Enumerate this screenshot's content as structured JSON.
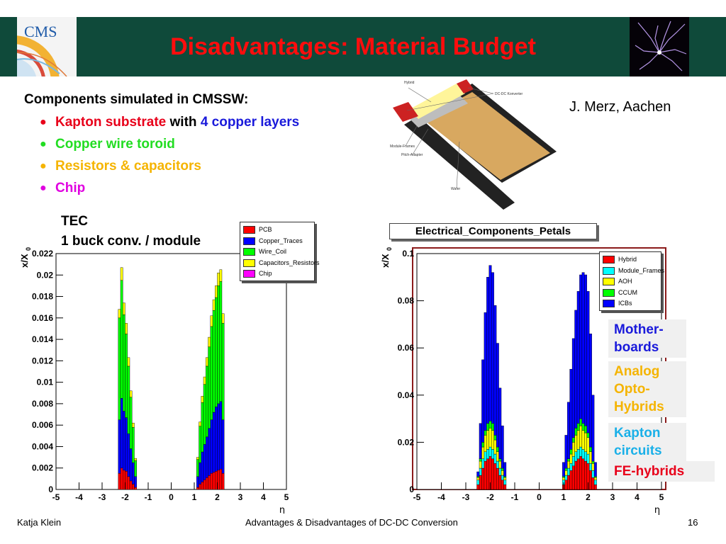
{
  "slide": {
    "title": "Disadvantages: Material Budget",
    "logo_text": "CMS",
    "components_heading": "Components simulated in CMSSW:",
    "bullets": [
      {
        "parts": [
          {
            "text": "Kapton substrate",
            "color": "#e8001a"
          },
          {
            "text": " with ",
            "color": "#000000"
          },
          {
            "text": "4 copper layers",
            "color": "#1a1adb"
          }
        ]
      },
      {
        "parts": [
          {
            "text": "Copper wire toroid",
            "color": "#22dd22"
          }
        ]
      },
      {
        "parts": [
          {
            "text": "Resistors & capacitors",
            "color": "#f5b400"
          }
        ]
      },
      {
        "parts": [
          {
            "text": "Chip",
            "color": "#e000e0"
          }
        ]
      }
    ],
    "credit": "J. Merz, Aachen",
    "module_diagram": {
      "labels": [
        "Hybrid",
        "DC-DC Konverter",
        "Module-Frames",
        "Pitch-Adapter",
        "Wafer"
      ],
      "colors": {
        "hybrid": "#fff59a",
        "frames": "#222222",
        "wafer": "#d8a860",
        "dcdc": "#cc2222",
        "pitch": "#bdbdbd"
      }
    },
    "left_chart_heading": [
      "TEC",
      "1 buck conv. / module"
    ],
    "right_chart_title": "Electrical_Components_Petals",
    "annotations": [
      {
        "text": "Mother-\nboards",
        "color": "#1a1adb"
      },
      {
        "text": "Analog\nOpto-\nHybrids",
        "color": "#f5b400"
      },
      {
        "text": "Kapton\ncircuits",
        "color": "#1ab0e8"
      },
      {
        "text": "FE-hybrids",
        "color": "#e8001a"
      }
    ],
    "footer": {
      "author": "Katja Klein",
      "center": "Advantages & Disadvantages of DC-DC Conversion",
      "page": "16"
    }
  },
  "chart_data": [
    {
      "type": "area",
      "stacked": true,
      "ylabel": "x/X",
      "ylabel_sub": "0",
      "xlabel": "η",
      "xlim": [
        -5,
        5
      ],
      "ylim": [
        0,
        0.022
      ],
      "xticks": [
        "-5",
        "-4",
        "-3",
        "-2",
        "-1",
        "0",
        "1",
        "2",
        "3",
        "4",
        "5"
      ],
      "yticks": [
        "0",
        "0.002",
        "0.004",
        "0.006",
        "0.008",
        "0.01",
        "0.012",
        "0.014",
        "0.016",
        "0.018",
        "0.02",
        "0.022"
      ],
      "legend_position": "top-right",
      "x": [
        -2.25,
        -2.15,
        -2.05,
        -1.95,
        -1.85,
        -1.75,
        -1.65,
        -1.55,
        1.15,
        1.25,
        1.35,
        1.45,
        1.55,
        1.65,
        1.75,
        1.85,
        1.95,
        2.05,
        2.15,
        2.25
      ],
      "series": [
        {
          "name": "PCB",
          "color": "#ff0000",
          "values": [
            0.0015,
            0.002,
            0.0018,
            0.0017,
            0.0012,
            0.0008,
            0.0005,
            0.0002,
            0.0002,
            0.0005,
            0.0007,
            0.0009,
            0.0011,
            0.0013,
            0.0015,
            0.0016,
            0.0017,
            0.0018,
            0.0019,
            0.0015
          ]
        },
        {
          "name": "Copper_Traces",
          "color": "#0000ff",
          "values": [
            0.005,
            0.0065,
            0.0055,
            0.005,
            0.004,
            0.003,
            0.002,
            0.001,
            0.001,
            0.002,
            0.0028,
            0.0033,
            0.0038,
            0.0044,
            0.005,
            0.0056,
            0.006,
            0.0062,
            0.0063,
            0.005
          ]
        },
        {
          "name": "Wire_Coil",
          "color": "#00ff00",
          "values": [
            0.0095,
            0.011,
            0.009,
            0.0078,
            0.0063,
            0.0048,
            0.0033,
            0.0015,
            0.0016,
            0.0034,
            0.0046,
            0.0056,
            0.0066,
            0.0076,
            0.0087,
            0.0095,
            0.0102,
            0.011,
            0.0112,
            0.009
          ]
        },
        {
          "name": "Capacitors_Resistors",
          "color": "#ffff00",
          "values": [
            0.0008,
            0.0012,
            0.0011,
            0.001,
            0.0008,
            0.0006,
            0.0004,
            0.0002,
            0.0002,
            0.0004,
            0.0006,
            0.0007,
            0.0008,
            0.0009,
            0.001,
            0.001,
            0.0011,
            0.0012,
            0.0011,
            0.0009
          ]
        },
        {
          "name": "Chip",
          "color": "#ff00ff",
          "values": [
            0,
            0,
            0,
            0,
            0,
            0,
            0,
            0,
            0,
            0,
            0,
            0,
            0,
            0,
            0,
            0,
            0,
            0,
            0,
            0
          ]
        }
      ]
    },
    {
      "type": "area",
      "stacked": true,
      "title": "Electrical_Components_Petals",
      "ylabel": "x/X",
      "ylabel_sub": "0",
      "xlabel": "η",
      "xlim": [
        -5,
        5
      ],
      "ylim": [
        0,
        0.1
      ],
      "xticks": [
        "-5",
        "-4",
        "-3",
        "-2",
        "-1",
        "0",
        "1",
        "2",
        "3",
        "4",
        "5"
      ],
      "yticks": [
        "0",
        "0.02",
        "0.04",
        "0.06",
        "0.08",
        "0.1"
      ],
      "legend_position": "top-right",
      "x": [
        -2.5,
        -2.4,
        -2.3,
        -2.2,
        -2.1,
        -2.0,
        -1.9,
        -1.8,
        -1.7,
        -1.6,
        -1.5,
        -1.4,
        1.0,
        1.1,
        1.2,
        1.3,
        1.4,
        1.5,
        1.6,
        1.7,
        1.8,
        1.9,
        2.0,
        2.1,
        2.2,
        2.3
      ],
      "series": [
        {
          "name": "Hybrid",
          "color": "#ff0000",
          "values": [
            0.002,
            0.006,
            0.009,
            0.012,
            0.013,
            0.014,
            0.013,
            0.011,
            0.009,
            0.006,
            0.004,
            0.002,
            0.002,
            0.004,
            0.006,
            0.008,
            0.01,
            0.012,
            0.013,
            0.014,
            0.013,
            0.012,
            0.011,
            0.008,
            0.005,
            0.002
          ]
        },
        {
          "name": "Module_Frames",
          "color": "#00ffff",
          "values": [
            0.002,
            0.003,
            0.004,
            0.004,
            0.004,
            0.004,
            0.004,
            0.004,
            0.003,
            0.003,
            0.002,
            0.002,
            0.002,
            0.002,
            0.003,
            0.003,
            0.004,
            0.004,
            0.004,
            0.004,
            0.004,
            0.004,
            0.004,
            0.003,
            0.003,
            0.002
          ]
        },
        {
          "name": "AOH",
          "color": "#ffff00",
          "values": [
            0.001,
            0.003,
            0.005,
            0.007,
            0.008,
            0.008,
            0.008,
            0.006,
            0.004,
            0.003,
            0.002,
            0.001,
            0.001,
            0.002,
            0.003,
            0.004,
            0.006,
            0.007,
            0.008,
            0.009,
            0.008,
            0.008,
            0.007,
            0.005,
            0.003,
            0.001
          ]
        },
        {
          "name": "CCUM",
          "color": "#00ff00",
          "values": [
            0.0005,
            0.001,
            0.002,
            0.002,
            0.003,
            0.003,
            0.003,
            0.002,
            0.002,
            0.001,
            0.001,
            0.0005,
            0.0005,
            0.001,
            0.001,
            0.002,
            0.002,
            0.003,
            0.003,
            0.003,
            0.003,
            0.003,
            0.002,
            0.002,
            0.001,
            0.0005
          ]
        },
        {
          "name": "ICBs",
          "color": "#0000ff",
          "values": [
            0.002,
            0.015,
            0.035,
            0.05,
            0.062,
            0.066,
            0.064,
            0.055,
            0.044,
            0.03,
            0.018,
            0.006,
            0.006,
            0.014,
            0.024,
            0.034,
            0.042,
            0.05,
            0.056,
            0.061,
            0.064,
            0.064,
            0.06,
            0.048,
            0.028,
            0.006
          ]
        }
      ]
    }
  ]
}
